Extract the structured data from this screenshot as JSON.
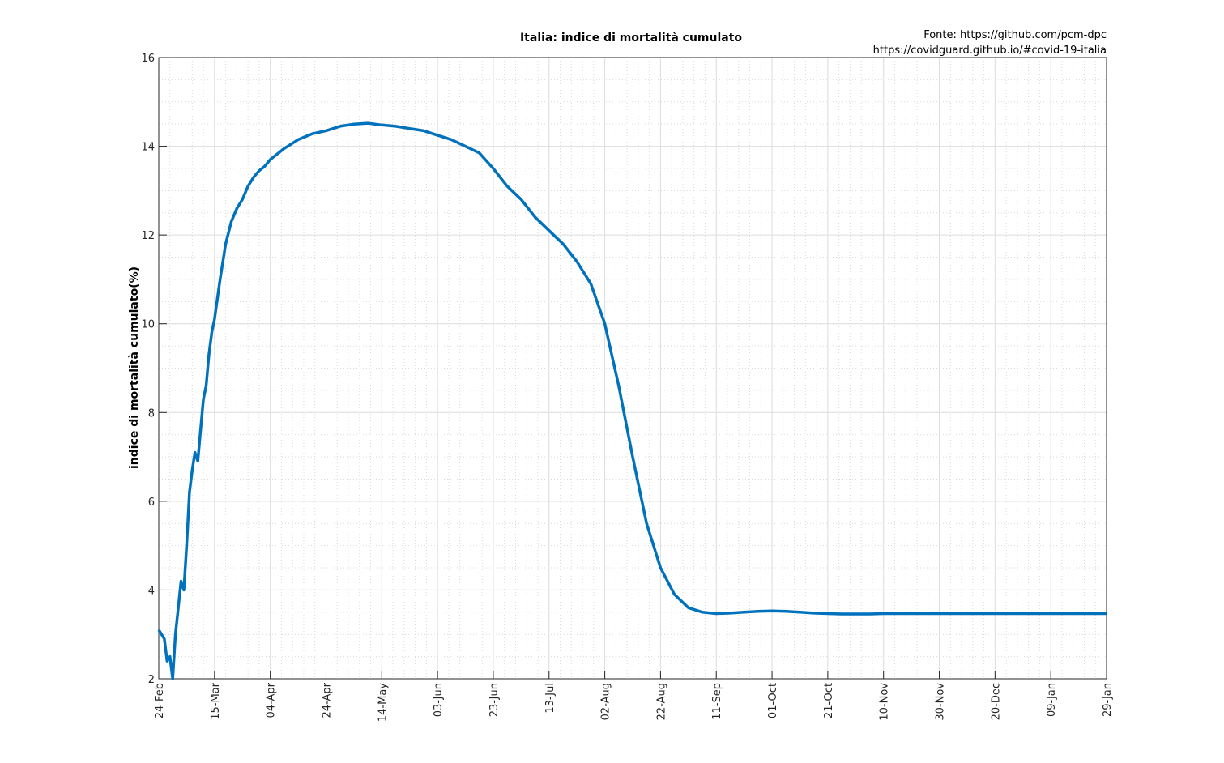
{
  "chart_data": {
    "type": "line",
    "title": "Italia: indice di mortalità cumulato",
    "source_lines": [
      "Fonte: https://github.com/pcm-dpc",
      "https://covidguard.github.io/#covid-19-italia"
    ],
    "xlabel": "",
    "ylabel": "indice di mortalità cumulato(%)",
    "ylim": [
      2,
      16
    ],
    "yticks": [
      2,
      4,
      6,
      8,
      10,
      12,
      14,
      16
    ],
    "xlim": [
      "24-Feb",
      "29-Jan"
    ],
    "xticks": [
      "24-Feb",
      "15-Mar",
      "04-Apr",
      "24-Apr",
      "14-May",
      "03-Jun",
      "23-Jun",
      "13-Jul",
      "02-Aug",
      "22-Aug",
      "11-Sep",
      "01-Oct",
      "21-Oct",
      "10-Nov",
      "30-Nov",
      "20-Dec",
      "09-Jan",
      "29-Jan"
    ],
    "grid": true,
    "minor_grid": true,
    "series": [
      {
        "color": "#0072bd",
        "x_day_offset": [
          0,
          2,
          3,
          4,
          5,
          6,
          7,
          8,
          9,
          10,
          11,
          12,
          13,
          14,
          15,
          16,
          17,
          18,
          19,
          20,
          22,
          24,
          26,
          28,
          30,
          32,
          34,
          36,
          38,
          40,
          45,
          50,
          55,
          60,
          65,
          70,
          75,
          80,
          85,
          90,
          95,
          100,
          105,
          110,
          115,
          120,
          125,
          130,
          135,
          140,
          145,
          150,
          155,
          160,
          165,
          170,
          175,
          180,
          185,
          190,
          195,
          200,
          205,
          210,
          215,
          220,
          225,
          230,
          235,
          240,
          245,
          250,
          255,
          260,
          265,
          270,
          275,
          280,
          285,
          290,
          300,
          310,
          320,
          330,
          340
        ],
        "values": [
          3.1,
          2.9,
          2.4,
          2.5,
          2.0,
          3.0,
          3.6,
          4.2,
          4.0,
          5.0,
          6.2,
          6.7,
          7.1,
          6.9,
          7.6,
          8.3,
          8.6,
          9.3,
          9.8,
          10.1,
          11.0,
          11.8,
          12.3,
          12.6,
          12.8,
          13.1,
          13.3,
          13.45,
          13.55,
          13.7,
          13.95,
          14.15,
          14.28,
          14.35,
          14.45,
          14.5,
          14.52,
          14.48,
          14.45,
          14.4,
          14.35,
          14.25,
          14.15,
          14.0,
          13.85,
          13.5,
          13.1,
          12.8,
          12.4,
          12.1,
          11.8,
          11.4,
          10.9,
          10.0,
          8.6,
          7.0,
          5.5,
          4.5,
          3.9,
          3.6,
          3.5,
          3.47,
          3.48,
          3.5,
          3.52,
          3.53,
          3.52,
          3.5,
          3.48,
          3.47,
          3.46,
          3.46,
          3.46,
          3.47,
          3.47,
          3.47,
          3.47,
          3.47,
          3.47,
          3.47,
          3.47,
          3.47,
          3.47,
          3.47,
          3.47
        ]
      }
    ]
  }
}
